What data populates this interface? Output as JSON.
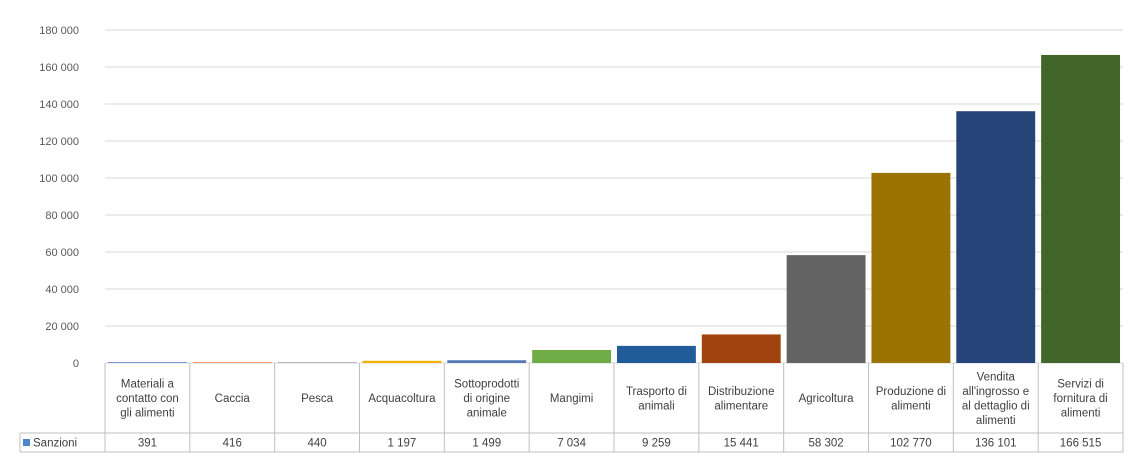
{
  "chart_data": {
    "type": "bar",
    "title": "",
    "xlabel": "",
    "ylabel": "",
    "ylim": [
      0,
      180000
    ],
    "yticks": [
      0,
      20000,
      40000,
      60000,
      80000,
      100000,
      120000,
      140000,
      160000,
      180000
    ],
    "ytick_labels": [
      "0",
      "20 000",
      "40 000",
      "60 000",
      "80 000",
      "100 000",
      "120 000",
      "140 000",
      "160 000",
      "180 000"
    ],
    "grid": true,
    "legend_position": "bottom-left (data table)",
    "categories": [
      [
        "Materiali a",
        "contatto con",
        "gli alimenti"
      ],
      [
        "Caccia"
      ],
      [
        "Pesca"
      ],
      [
        "Acquacoltura"
      ],
      [
        "Sottoprodotti",
        "di origine",
        "animale"
      ],
      [
        "Mangimi"
      ],
      [
        "Trasporto di",
        "animali"
      ],
      [
        "Distribuzione",
        "alimentare"
      ],
      [
        "Agricoltura"
      ],
      [
        "Produzione di",
        "alimenti"
      ],
      [
        "Vendita",
        "all'ingrosso e",
        "al dettaglio di",
        "alimenti"
      ],
      [
        "Servizi di",
        "fornitura di",
        "alimenti"
      ]
    ],
    "series": [
      {
        "name": "Sanzioni",
        "values": [
          391,
          416,
          440,
          1197,
          1499,
          7034,
          9259,
          15441,
          58302,
          102770,
          136101,
          166515
        ],
        "value_labels": [
          "391",
          "416",
          "440",
          "1 197",
          "1 499",
          "7 034",
          "9 259",
          "15 441",
          "58 302",
          "102 770",
          "136 101",
          "166 515"
        ]
      }
    ],
    "legend_key_color": "#4a86c8",
    "bar_colors": [
      "#4472c4",
      "#ed7d31",
      "#a5a5a5",
      "#f0b400",
      "#5579b3",
      "#70ad47",
      "#1f5c99",
      "#a1430f",
      "#636363",
      "#9b7300",
      "#264478",
      "#426629"
    ]
  }
}
